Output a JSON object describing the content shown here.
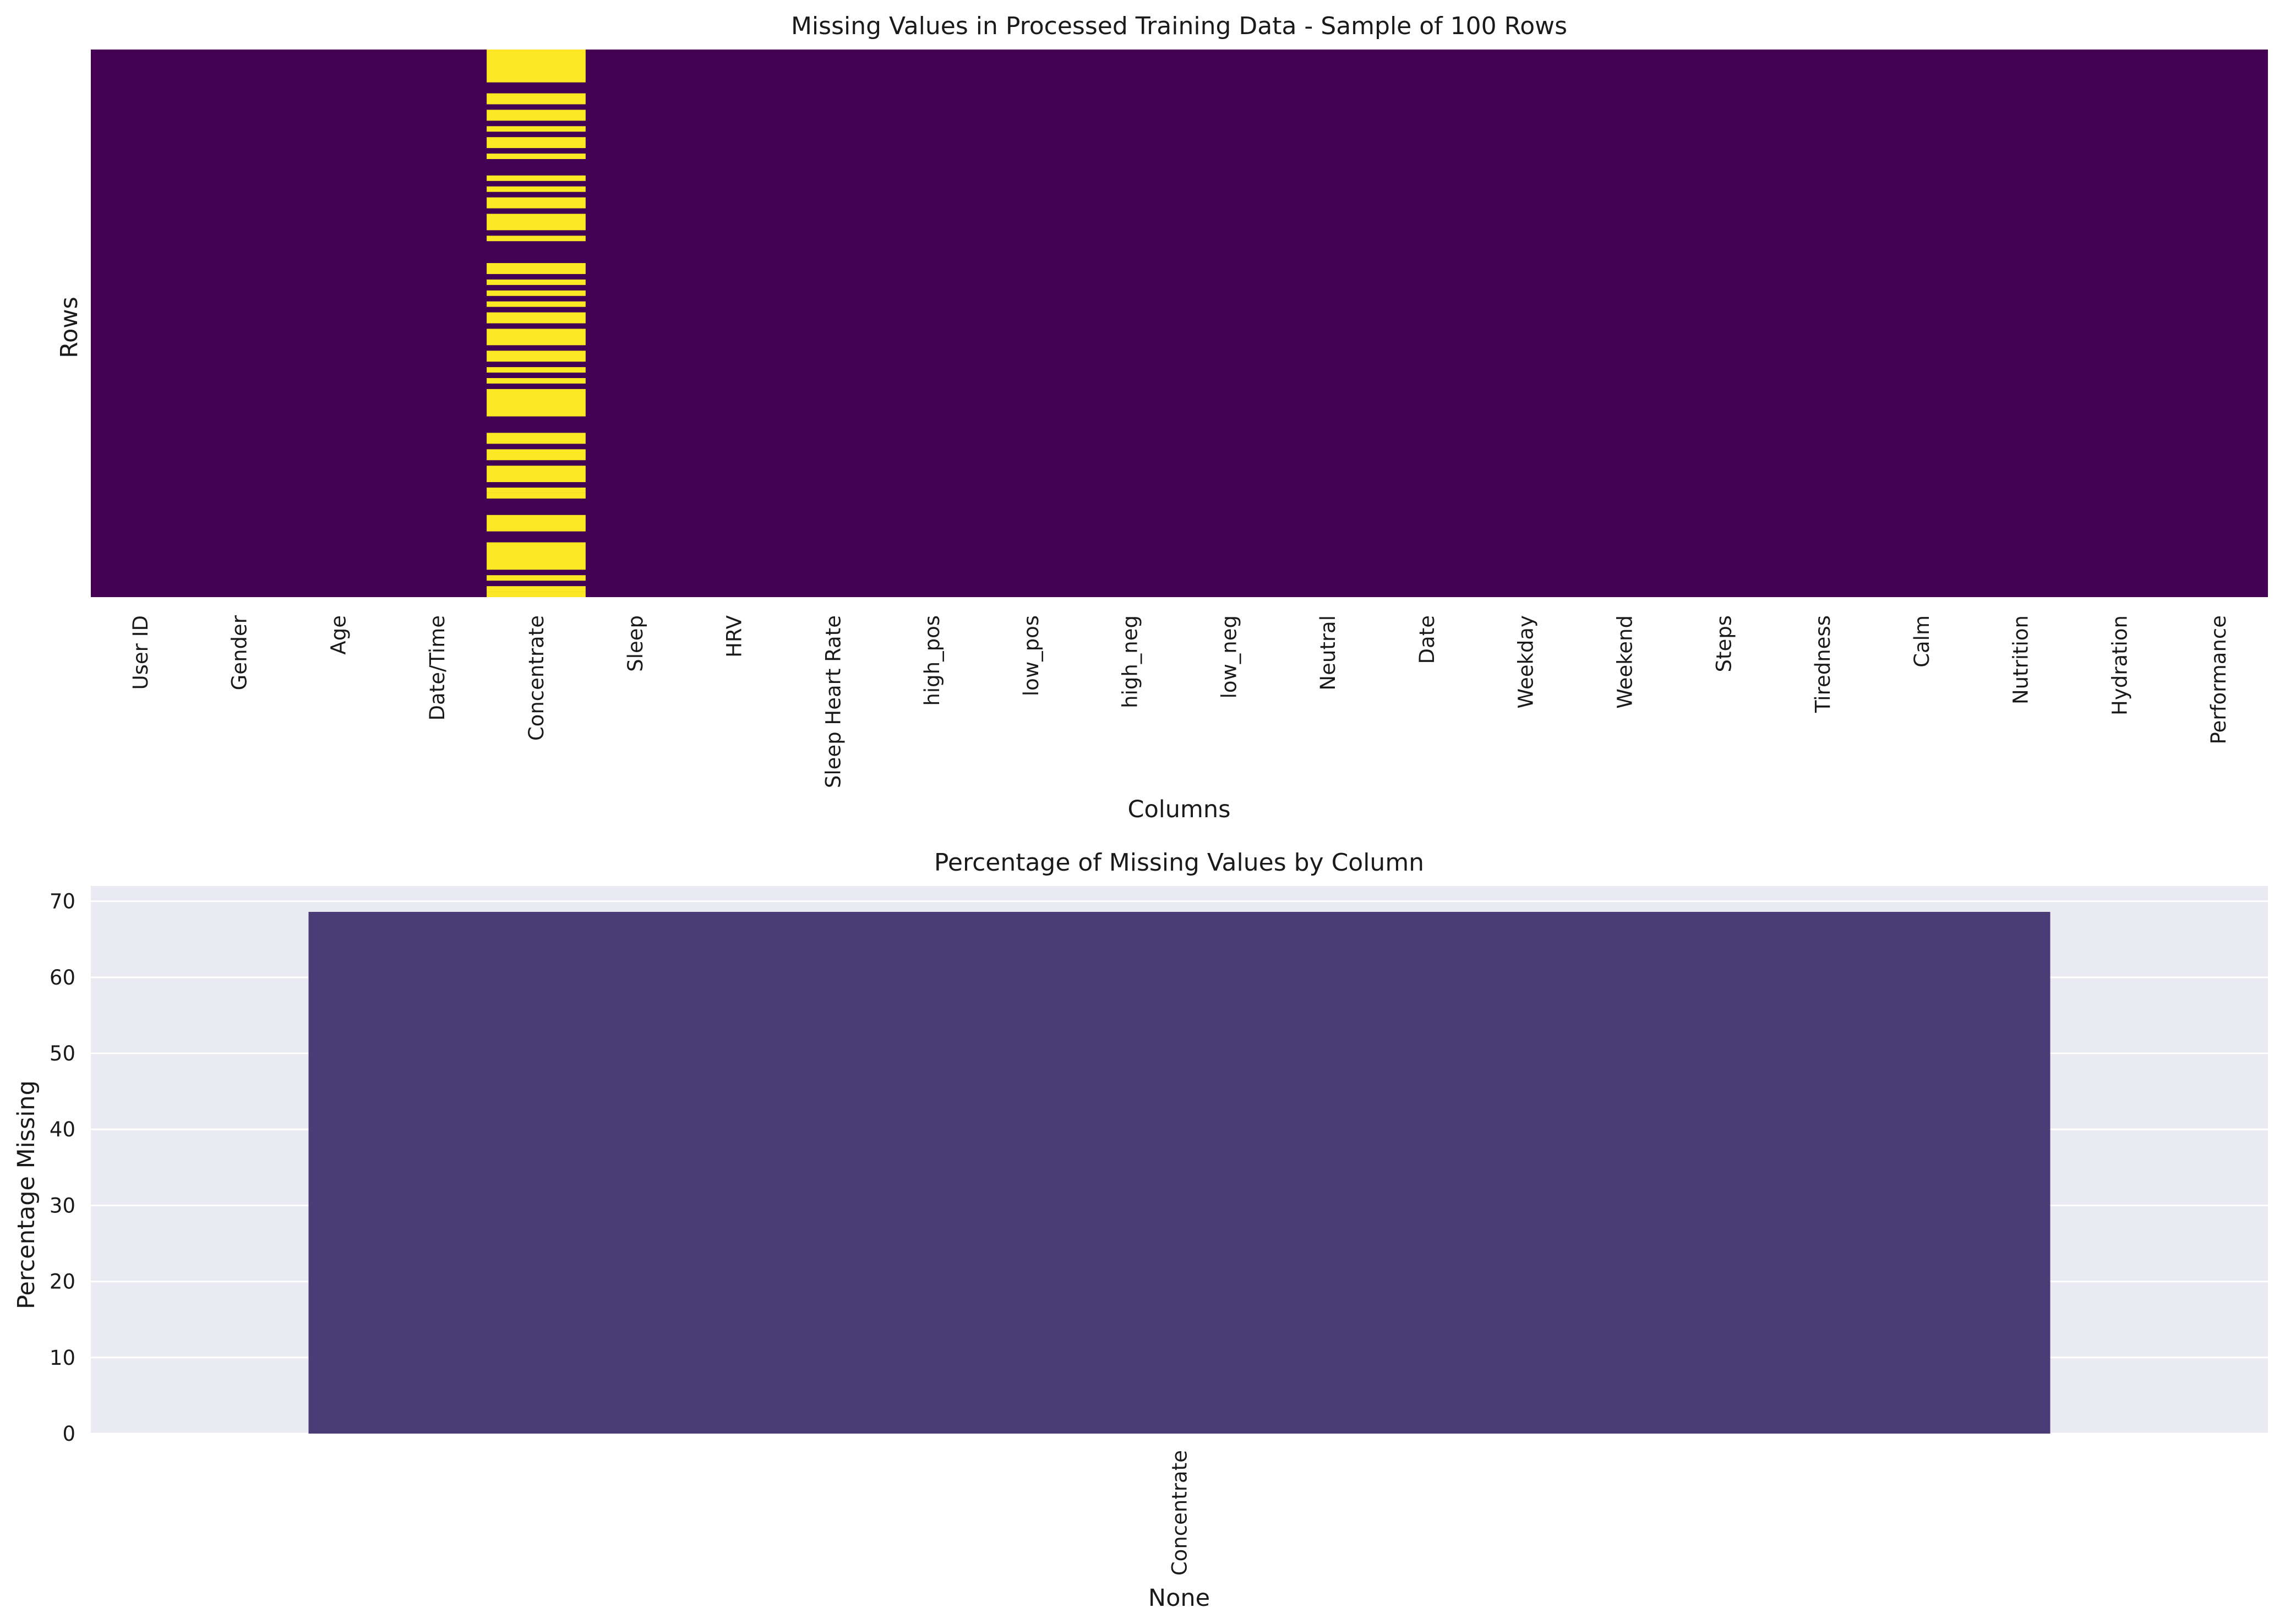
{
  "chart_data": [
    {
      "type": "heatmap",
      "title": "Missing Values in Processed Training Data - Sample of 100 Rows",
      "xlabel": "Columns",
      "ylabel": "Rows",
      "row_count": 100,
      "columns": [
        "User ID",
        "Gender",
        "Age",
        "Date/Time",
        "Concentrate",
        "Sleep",
        "HRV",
        "Sleep Heart Rate",
        "high_pos",
        "low_pos",
        "high_neg",
        "low_neg",
        "Neutral",
        "Date",
        "Weekday",
        "Weekend",
        "Steps",
        "Tiredness",
        "Calm",
        "Nutrition",
        "Hydration",
        "Performance"
      ],
      "missing_column": "Concentrate",
      "missing_row_ranges": [
        [
          0,
          6
        ],
        [
          8,
          10
        ],
        [
          11,
          13
        ],
        [
          14,
          15
        ],
        [
          16,
          18
        ],
        [
          19,
          20
        ],
        [
          23,
          24
        ],
        [
          25,
          26
        ],
        [
          27,
          29
        ],
        [
          30,
          33
        ],
        [
          34,
          35
        ],
        [
          39,
          41
        ],
        [
          42,
          43
        ],
        [
          44,
          45
        ],
        [
          46,
          47
        ],
        [
          48,
          50
        ],
        [
          51,
          54
        ],
        [
          55,
          57
        ],
        [
          58,
          59
        ],
        [
          60,
          61
        ],
        [
          62,
          67
        ],
        [
          70,
          72
        ],
        [
          73,
          75
        ],
        [
          76,
          79
        ],
        [
          80,
          81
        ],
        [
          81,
          82
        ],
        [
          85,
          88
        ],
        [
          90,
          95
        ],
        [
          96,
          97
        ],
        [
          98,
          99
        ],
        [
          99,
          100
        ]
      ],
      "colors": {
        "missing": "#fde725",
        "present": "#440154"
      }
    },
    {
      "type": "bar",
      "title": "Percentage of Missing Values by Column",
      "xlabel": "None",
      "ylabel": "Percentage Missing",
      "categories": [
        "Concentrate"
      ],
      "values": [
        68.6
      ],
      "ylim": [
        0,
        72
      ],
      "yticks": [
        0,
        10,
        20,
        30,
        40,
        50,
        60,
        70
      ],
      "grid": true,
      "colors": {
        "bar": "#4a3c77",
        "background": "#eaeaf2",
        "grid": "#ffffff"
      }
    }
  ]
}
